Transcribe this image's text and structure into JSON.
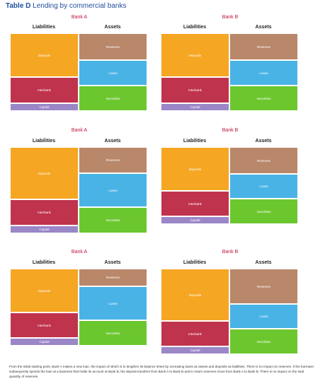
{
  "figure": {
    "label": "Table D",
    "title": "Lending by commercial banks"
  },
  "labels": {
    "liabilities": "Liabilities",
    "assets": "Assets",
    "deposits": "Deposits",
    "interbank": "Interbank",
    "capital": "Capital",
    "reserves": "Reserves",
    "loans": "Loans",
    "securities": "Securities"
  },
  "banks": {
    "a": "Bank A",
    "b": "Bank B"
  },
  "caption": "From the initial starting point, Bank A makes a new loan, the impact of which is to lengthen its balance sheet by increasing loans as assets and deposits as liabilities. There is no impact on reserves. If the borrower subsequently spends the loan at a business that holds its account at Bank B, the deposit transfers from Bank A to Bank B and in return reserves move from Bank A to Bank B. There is no impact on the total quantity of reserves.",
  "colors": {
    "deposits": "#f5a623",
    "interbank": "#c0334d",
    "capital": "#9b86c7",
    "reserves": "#b9876a",
    "loans": "#49b3e5",
    "securities": "#6cc72f",
    "title": "#1f4e9c",
    "bank_title": "#c0143c"
  }
}
